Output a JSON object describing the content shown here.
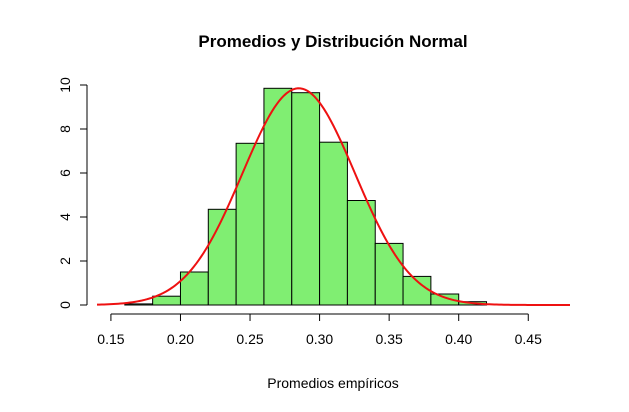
{
  "chart_data": {
    "type": "bar",
    "title": "Promedios y Distribución Normal",
    "xlabel": "Promedios empíricos",
    "ylabel": "",
    "xlim": [
      0.14,
      0.48
    ],
    "ylim": [
      0,
      10
    ],
    "x_ticks": [
      "0.15",
      "0.20",
      "0.25",
      "0.30",
      "0.35",
      "0.40",
      "0.45"
    ],
    "y_ticks": [
      "0",
      "2",
      "4",
      "6",
      "8",
      "10"
    ],
    "bins": [
      {
        "x0": 0.16,
        "x1": 0.18,
        "y": 0.05
      },
      {
        "x0": 0.18,
        "x1": 0.2,
        "y": 0.4
      },
      {
        "x0": 0.2,
        "x1": 0.22,
        "y": 1.5
      },
      {
        "x0": 0.22,
        "x1": 0.24,
        "y": 4.35
      },
      {
        "x0": 0.24,
        "x1": 0.26,
        "y": 7.35
      },
      {
        "x0": 0.26,
        "x1": 0.28,
        "y": 9.85
      },
      {
        "x0": 0.28,
        "x1": 0.3,
        "y": 9.65
      },
      {
        "x0": 0.3,
        "x1": 0.32,
        "y": 7.4
      },
      {
        "x0": 0.32,
        "x1": 0.34,
        "y": 4.75
      },
      {
        "x0": 0.34,
        "x1": 0.36,
        "y": 2.8
      },
      {
        "x0": 0.36,
        "x1": 0.38,
        "y": 1.3
      },
      {
        "x0": 0.38,
        "x1": 0.4,
        "y": 0.5
      },
      {
        "x0": 0.4,
        "x1": 0.42,
        "y": 0.15
      }
    ],
    "normal_curve": {
      "mean": 0.285,
      "sd": 0.0405
    },
    "bar_color": "#80ee72",
    "curve_color": "#ee1111",
    "grid": false
  }
}
